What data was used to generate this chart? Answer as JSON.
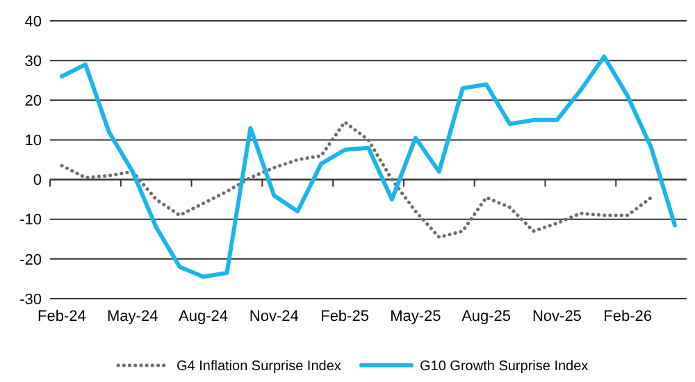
{
  "chart_data": {
    "type": "line",
    "categories": [
      "Feb-24",
      null,
      null,
      "May-24",
      null,
      null,
      "Aug-24",
      null,
      null,
      "Nov-24",
      null,
      null,
      "Feb-25",
      null,
      null,
      "May-25",
      null,
      null,
      "Aug-25",
      null,
      null,
      "Nov-25",
      null,
      null,
      "Feb-26",
      null,
      null
    ],
    "series": [
      {
        "name": "G4 Inflation Surprise Index",
        "color": "#6d6e71",
        "line_style": "dotted",
        "values": [
          3.5,
          0.5,
          1,
          2,
          -5,
          -9,
          -6,
          -3,
          0.5,
          3,
          5,
          6,
          14.5,
          10,
          0,
          -8,
          -14.5,
          -13,
          -4.5,
          -7,
          -13,
          -11,
          -8.5,
          -9,
          -9,
          -4.5,
          null
        ]
      },
      {
        "name": "G10 Growth Surprise Index",
        "color": "#1db4ea",
        "line_style": "solid",
        "values": [
          26,
          29,
          12,
          2,
          -12,
          -22,
          -24.5,
          -23.5,
          13,
          -4,
          -8,
          4,
          7.5,
          8,
          -5,
          10.5,
          2,
          23,
          24,
          14,
          15,
          15,
          22.5,
          31,
          21,
          8,
          -11.5
        ]
      }
    ],
    "ylim": [
      -30,
      40
    ],
    "yticks": [
      -30,
      -20,
      -10,
      0,
      10,
      20,
      30,
      40
    ],
    "grid": "y",
    "legend": "bottom"
  }
}
